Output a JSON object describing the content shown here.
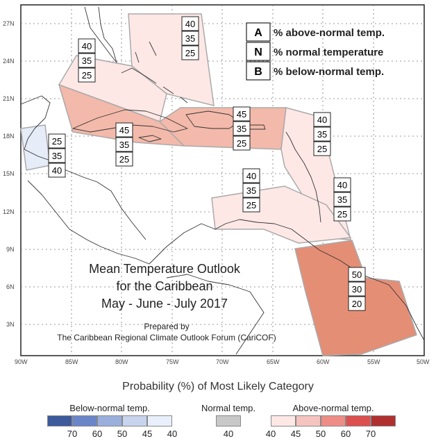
{
  "map": {
    "title_lines": [
      "Mean Temperature Outlook",
      "for the Caribbean",
      "May - June - July 2017"
    ],
    "prepared_by": "Prepared by",
    "organization": "The Caribbean Regional Climate Outlook Forum (CariCOF)",
    "lat_labels": [
      "27N",
      "24N",
      "21N",
      "18N",
      "15N",
      "12N",
      "9N",
      "6N",
      "3N"
    ],
    "lon_labels": [
      "90W",
      "85W",
      "80W",
      "75W",
      "70W",
      "65W",
      "60W",
      "55W",
      "50W"
    ]
  },
  "key": {
    "rows": [
      {
        "letter": "A",
        "text": "% above-normal temp."
      },
      {
        "letter": "N",
        "text": "% normal temperature"
      },
      {
        "letter": "B",
        "text": "% below-normal temp."
      }
    ]
  },
  "forecast_boxes": [
    {
      "region": "bahamas-north",
      "values": [
        "40",
        "35",
        "25"
      ]
    },
    {
      "region": "bahamas-west",
      "values": [
        "40",
        "35",
        "25"
      ]
    },
    {
      "region": "belize-honduras",
      "values": [
        "25",
        "35",
        "40"
      ]
    },
    {
      "region": "cuba-jamaica",
      "values": [
        "45",
        "35",
        "25"
      ]
    },
    {
      "region": "hispaniola-puerto-rico",
      "values": [
        "45",
        "35",
        "25"
      ]
    },
    {
      "region": "leeward-islands",
      "values": [
        "40",
        "35",
        "25"
      ]
    },
    {
      "region": "caribbean-sea",
      "values": [
        "40",
        "35",
        "25"
      ]
    },
    {
      "region": "windward-islands",
      "values": [
        "40",
        "35",
        "25"
      ]
    },
    {
      "region": "guianas",
      "values": [
        "50",
        "30",
        "20"
      ]
    }
  ],
  "legend": {
    "title": "Probability (%) of Most Likely Category",
    "below": {
      "title": "Below-normal temp.",
      "colors": [
        "#3d5a9c",
        "#6a86c8",
        "#9aafdc",
        "#c8d4ee",
        "#eaf0fb"
      ],
      "values": [
        "70",
        "60",
        "50",
        "45",
        "40"
      ]
    },
    "normal": {
      "title": "Normal temp.",
      "colors": [
        "#c8c8c8"
      ],
      "values": [
        "40"
      ]
    },
    "above": {
      "title": "Above-normal temp.",
      "colors": [
        "#fde8e6",
        "#f6c4c0",
        "#ee8c86",
        "#dc5050",
        "#b03030"
      ],
      "values": [
        "40",
        "45",
        "50",
        "60",
        "70"
      ]
    }
  }
}
